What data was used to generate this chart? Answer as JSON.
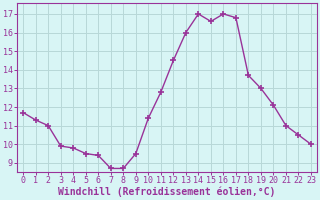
{
  "x": [
    0,
    1,
    2,
    3,
    4,
    5,
    6,
    7,
    8,
    9,
    10,
    11,
    12,
    13,
    14,
    15,
    16,
    17,
    18,
    19,
    20,
    21,
    22,
    23
  ],
  "y": [
    11.7,
    11.3,
    11.0,
    9.9,
    9.8,
    9.5,
    9.4,
    8.7,
    8.7,
    9.5,
    11.4,
    12.8,
    14.5,
    16.0,
    17.0,
    16.6,
    17.0,
    16.8,
    13.7,
    13.0,
    12.1,
    11.0,
    10.5,
    10.0
  ],
  "line_color": "#993399",
  "marker": "+",
  "markersize": 4,
  "linewidth": 1.0,
  "bg_color": "#d8f5f5",
  "grid_color": "#b8d8d8",
  "ylabel_ticks": [
    9,
    10,
    11,
    12,
    13,
    14,
    15,
    16,
    17
  ],
  "xlabel_ticks": [
    0,
    1,
    2,
    3,
    4,
    5,
    6,
    7,
    8,
    9,
    10,
    11,
    12,
    13,
    14,
    15,
    16,
    17,
    18,
    19,
    20,
    21,
    22,
    23
  ],
  "xlabel": "Windchill (Refroidissement éolien,°C)",
  "ylim": [
    8.5,
    17.6
  ],
  "xlim": [
    -0.5,
    23.5
  ],
  "line_color_hex": "#993399",
  "tick_color": "#993399",
  "label_fontsize": 7,
  "tick_fontsize": 6
}
